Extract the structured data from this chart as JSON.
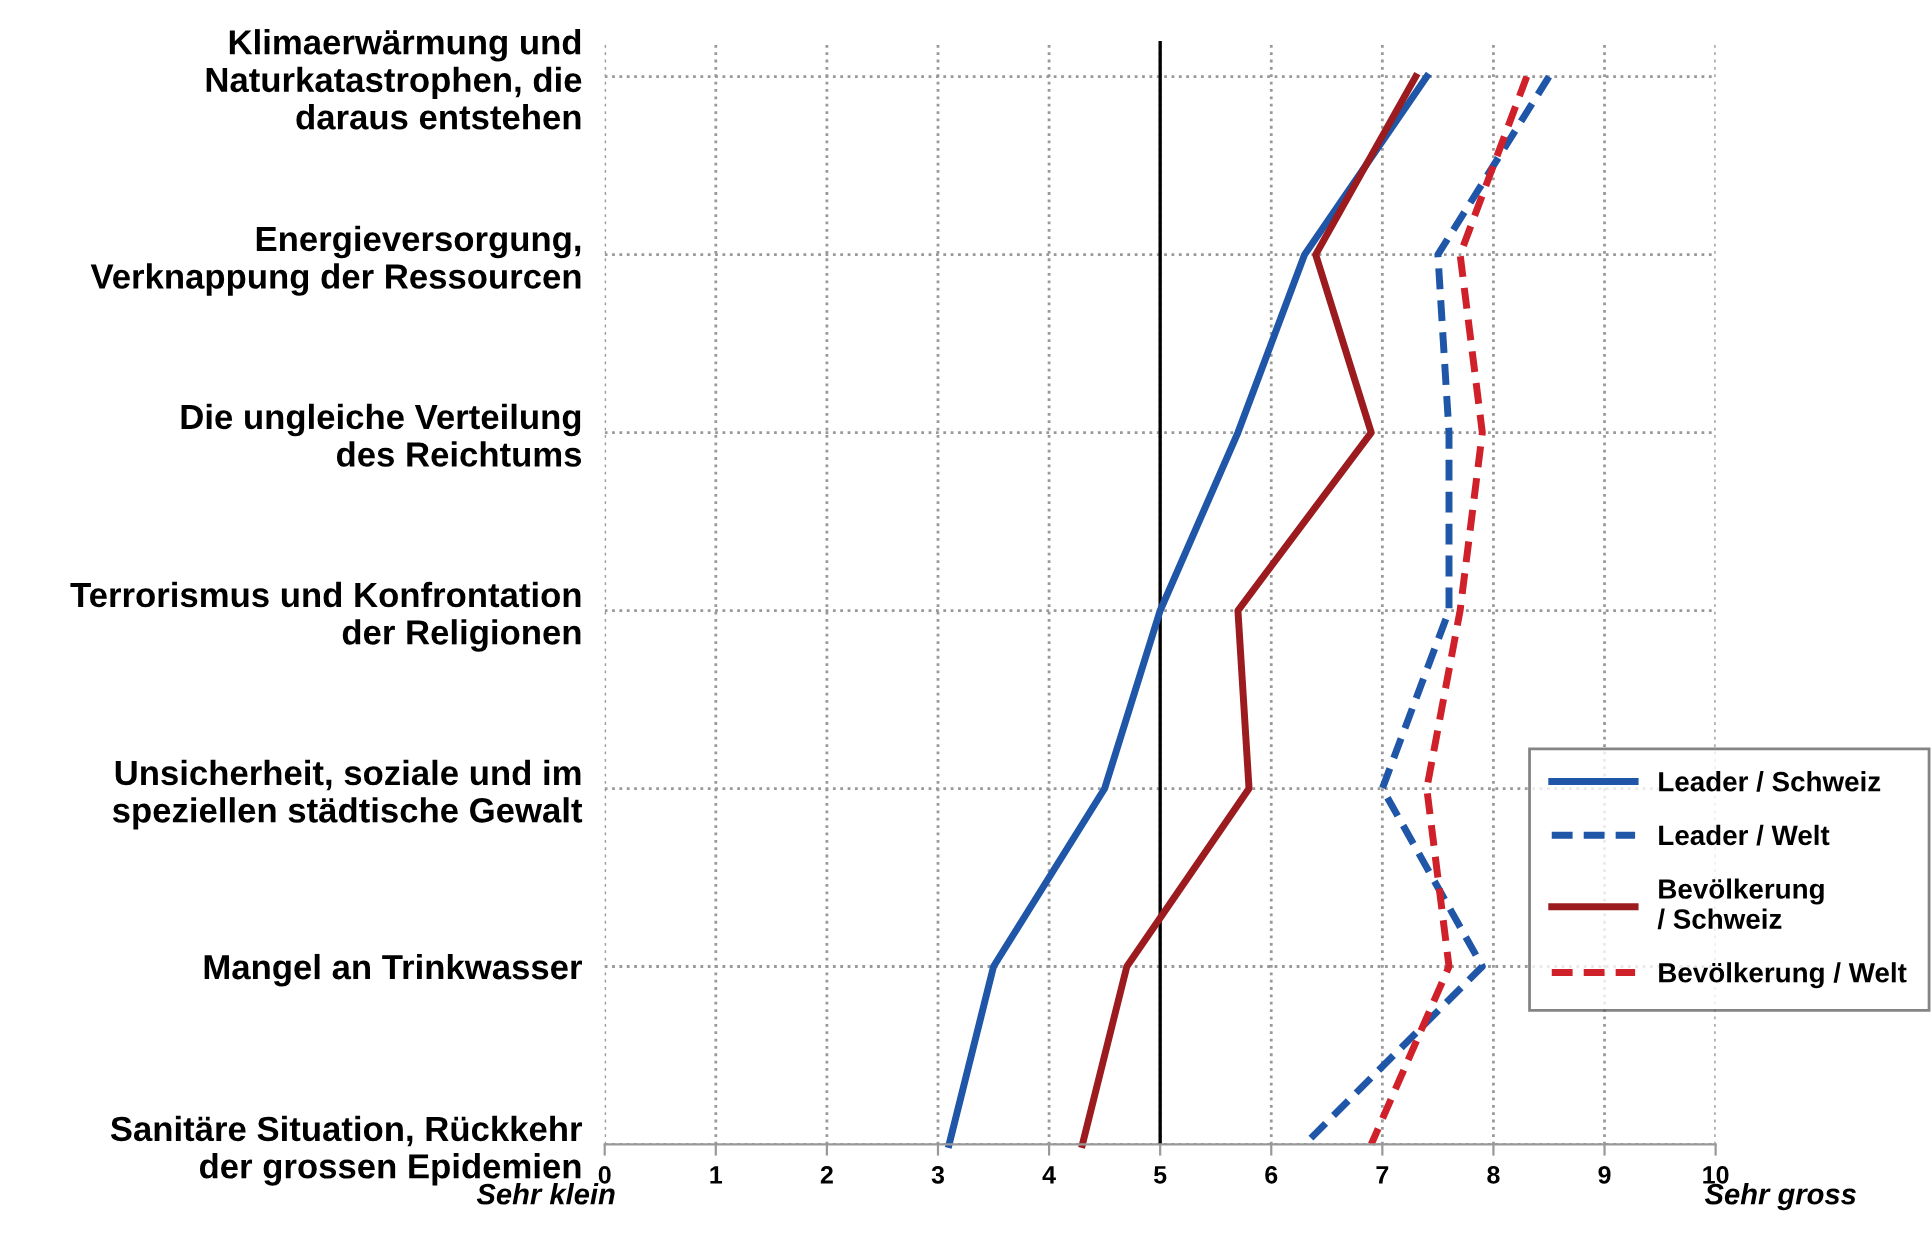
{
  "chart_data": {
    "type": "line",
    "orientation": "horizontal",
    "categories": [
      "Klimaerwärmung und\nNaturkatastrophen, die\ndaraus entstehen",
      "Energieversorgung,\nVerknappung der Ressourcen",
      "Die ungleiche Verteilung\ndes Reichtums",
      "Terrorismus und Konfrontation\nder Religionen",
      "Unsicherheit, soziale und im\nspeziellen städtische Gewalt",
      "Mangel an Trinkwasser",
      "Sanitäre Situation, Rückkehr\nder grossen Epidemien"
    ],
    "series": [
      {
        "name": "Leader / Schweiz",
        "color": "#1f56a8",
        "line_style": "solid",
        "values": [
          7.4,
          6.3,
          5.7,
          5.0,
          4.5,
          3.5,
          3.1
        ]
      },
      {
        "name": "Leader / Welt",
        "color": "#1f56a8",
        "line_style": "dashed",
        "values": [
          8.5,
          7.5,
          7.6,
          7.6,
          7.0,
          7.9,
          6.3
        ]
      },
      {
        "name": "Bevölkerung / Schweiz",
        "color": "#9b1b1e",
        "line_style": "solid",
        "values": [
          7.3,
          6.4,
          6.9,
          5.7,
          5.8,
          4.7,
          4.3
        ]
      },
      {
        "name": "Bevölkerung / Welt",
        "color": "#d0202a",
        "line_style": "dashed",
        "values": [
          8.3,
          7.7,
          7.9,
          7.7,
          7.4,
          7.6,
          6.9
        ]
      }
    ],
    "xlim": [
      0,
      10
    ],
    "xticks": [
      0,
      1,
      2,
      3,
      4,
      5,
      6,
      7,
      8,
      9,
      10
    ],
    "ref_lines": [
      {
        "axis": "x",
        "value": 5,
        "color": "#000000"
      }
    ],
    "annotations": [
      "Sehr klein",
      "Sehr gross"
    ],
    "grid": true,
    "legend": "right",
    "marker": "none"
  }
}
